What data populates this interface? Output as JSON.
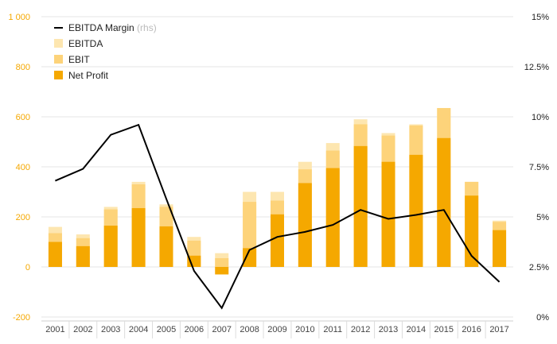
{
  "chart_data": {
    "type": "bar",
    "categories": [
      "2001",
      "2002",
      "2003",
      "2004",
      "2005",
      "2006",
      "2007",
      "2008",
      "2009",
      "2010",
      "2011",
      "2012",
      "2013",
      "2014",
      "2015",
      "2016",
      "2017"
    ],
    "series": [
      {
        "name": "EBITDA",
        "values": [
          160,
          130,
          240,
          340,
          250,
          120,
          55,
          300,
          300,
          420,
          495,
          590,
          535,
          570,
          635,
          340,
          185
        ],
        "color": "#fde6b0"
      },
      {
        "name": "EBIT",
        "values": [
          135,
          115,
          230,
          330,
          240,
          105,
          35,
          260,
          265,
          390,
          465,
          570,
          525,
          565,
          635,
          340,
          180
        ],
        "color": "#fdd37a"
      },
      {
        "name": "Net Profit",
        "values": [
          100,
          83,
          165,
          235,
          162,
          45,
          -30,
          75,
          210,
          335,
          395,
          483,
          420,
          448,
          515,
          285,
          147
        ],
        "color": "#f5a800"
      },
      {
        "name": "EBITDA Margin",
        "suffix": "(rhs)",
        "type": "line",
        "axis": "right",
        "values": [
          6.8,
          7.4,
          9.1,
          9.6,
          5.9,
          2.3,
          0.45,
          3.35,
          4.0,
          4.25,
          4.6,
          5.35,
          4.9,
          5.1,
          5.35,
          3.05,
          1.75
        ],
        "color": "#000000"
      }
    ],
    "y_left": {
      "ylim": [
        -200,
        1000
      ],
      "ticks": [
        -200,
        0,
        200,
        400,
        600,
        800,
        1000
      ],
      "tick_labels": [
        "-200",
        "0",
        "200",
        "400",
        "600",
        "800",
        "1 000"
      ]
    },
    "y_right": {
      "ylim": [
        0,
        15
      ],
      "ticks": [
        0,
        2.5,
        5,
        7.5,
        10,
        12.5,
        15
      ],
      "tick_labels": [
        "0%",
        "2.5%",
        "5%",
        "7.5%",
        "10%",
        "12.5%",
        "15%"
      ]
    },
    "legend": {
      "placement": "top-left",
      "order": [
        "EBITDA Margin",
        "EBITDA",
        "EBIT",
        "Net Profit"
      ]
    },
    "grid": true,
    "title": "",
    "xlabel": "",
    "ylabel": ""
  }
}
